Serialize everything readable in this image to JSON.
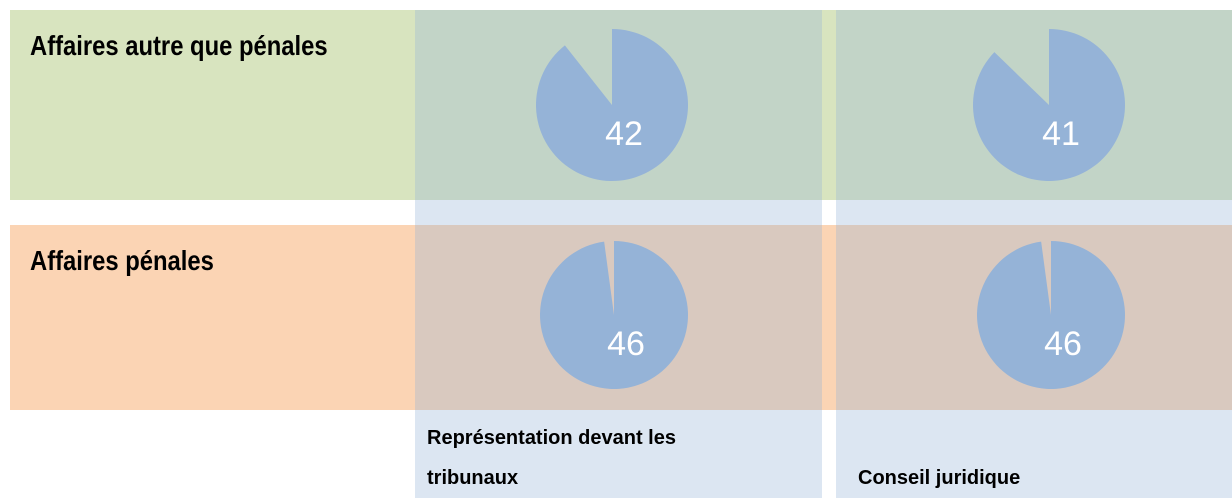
{
  "rows": [
    {
      "label": "Affaires autre que pénales",
      "values": [
        42,
        41
      ]
    },
    {
      "label": "Affaires pénales",
      "values": [
        46,
        46
      ]
    }
  ],
  "columns": [
    "Représentation devant les tribunaux",
    "Conseil juridique"
  ],
  "pie_max": 47,
  "pie_color": "#95b3d7",
  "row_colors": [
    "#d8e4bf",
    "#fbd4b4"
  ],
  "column_color": "#95b3d7"
}
